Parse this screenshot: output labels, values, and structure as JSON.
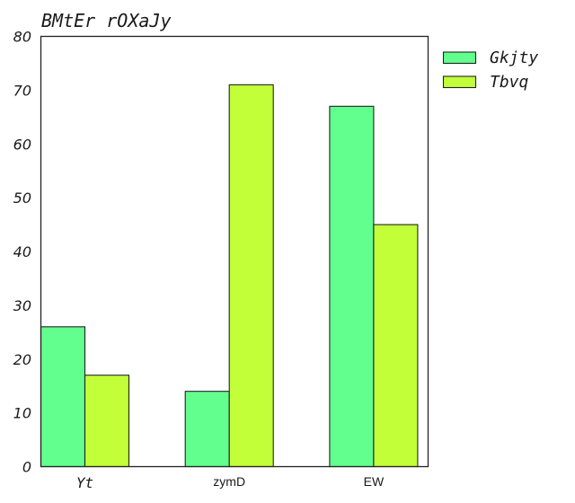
{
  "chart_data": {
    "type": "bar",
    "title": "BMtEr rOXaJy",
    "categories": [
      "Yt",
      "zymD",
      "EW"
    ],
    "series": [
      {
        "name": "Gkjty",
        "values": [
          26,
          14,
          67
        ],
        "color": "#62ff8e"
      },
      {
        "name": "Tbvq",
        "values": [
          17,
          71,
          45
        ],
        "color": "#c2ff38"
      }
    ],
    "ylim": [
      0,
      80
    ],
    "yticks": [
      0,
      10,
      20,
      30,
      40,
      50,
      60,
      70,
      80
    ],
    "xlabel": "",
    "ylabel": "",
    "grid": false,
    "legend_position": "outside-top-right"
  }
}
